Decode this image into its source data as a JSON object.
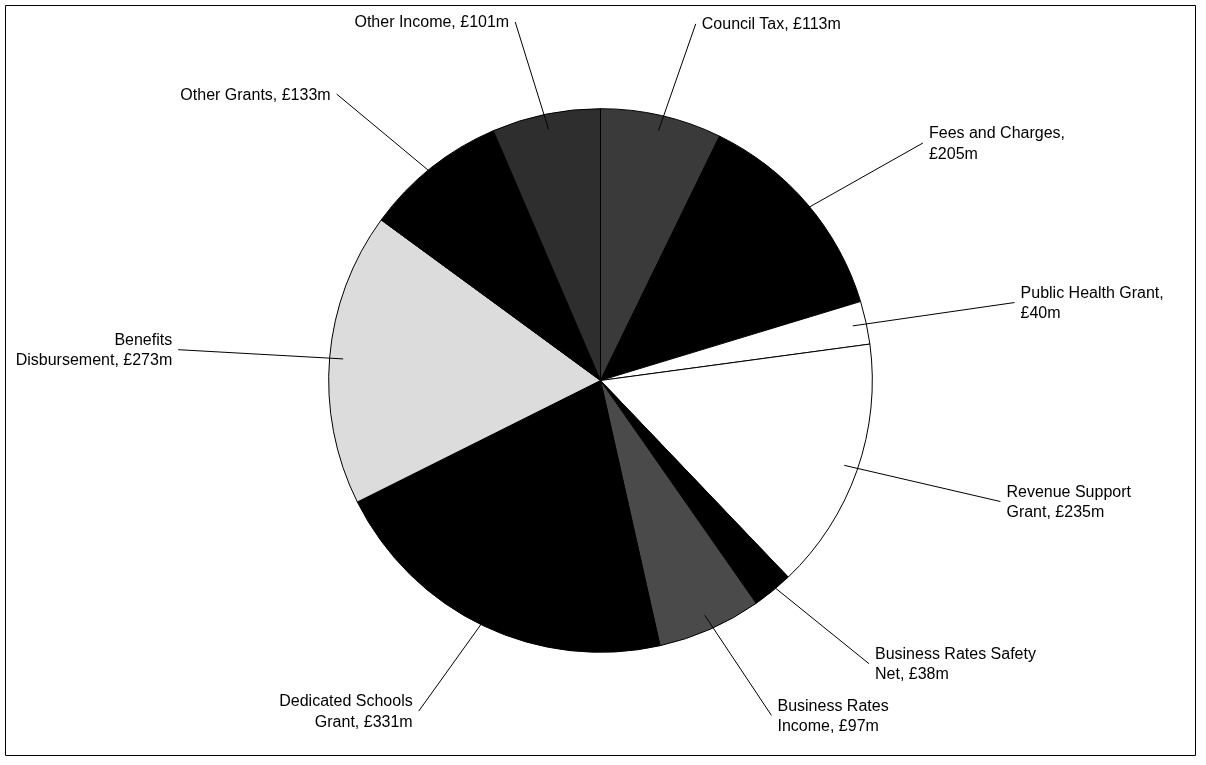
{
  "chart_data": {
    "type": "pie",
    "categories": [
      "Council Tax, £113m",
      "Fees and Charges, £205m",
      "Public Health Grant, £40m",
      "Revenue Support Grant, £235m",
      "Business Rates Safety Net, £38m",
      "Business Rates Income, £97m",
      "Dedicated Schools Grant, £331m",
      "Benefits Disbursement, £273m",
      "Other Grants, £133m",
      "Other Income, £101m"
    ],
    "values": [
      113,
      205,
      40,
      235,
      38,
      97,
      331,
      273,
      133,
      101
    ],
    "colors": [
      "#3a3a3a",
      "#000000",
      "#ffffff",
      "#ffffff",
      "#000000",
      "#4a4a4a",
      "#000000",
      "#dcdcdc",
      "#000000",
      "#2e2e2e"
    ]
  }
}
